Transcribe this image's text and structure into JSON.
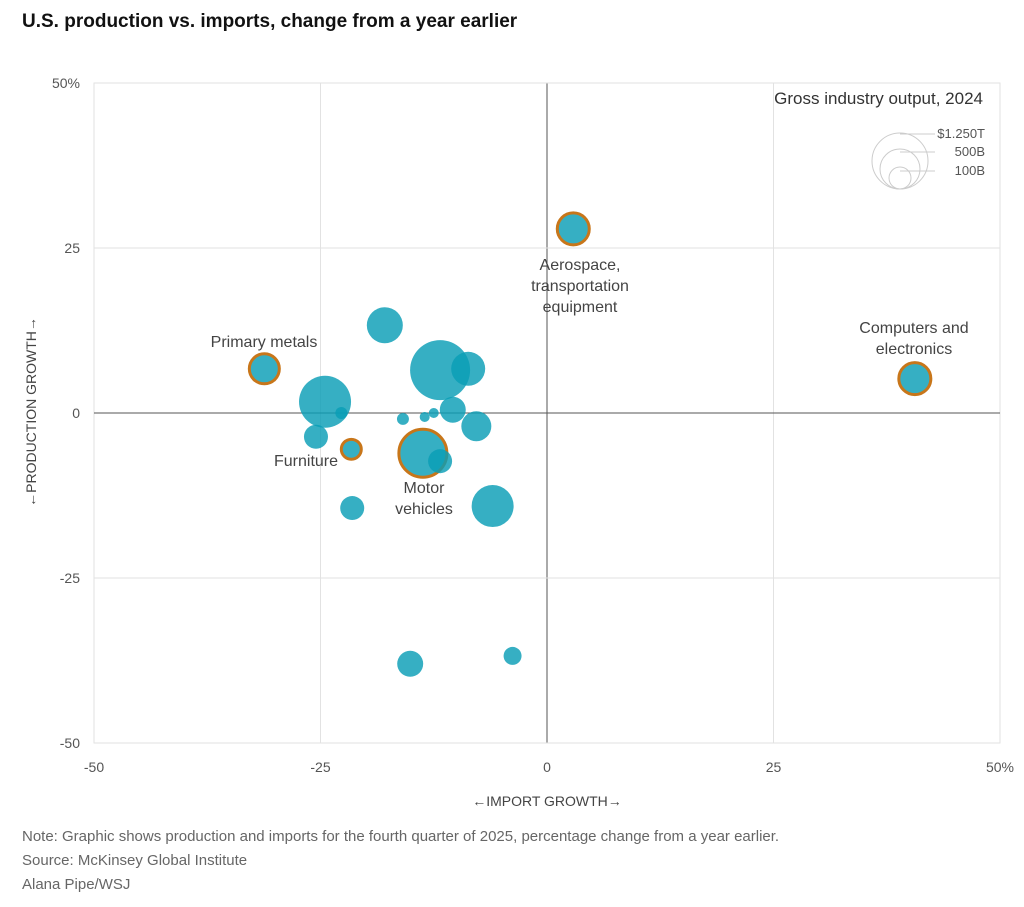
{
  "chart_data": {
    "type": "scatter",
    "title": "U.S. production vs. imports, change from a year earlier",
    "xlabel": "←IMPORT GROWTH→",
    "ylabel": "←PRODUCTION GROWTH→",
    "xlim": [
      -50,
      50
    ],
    "ylim": [
      -50,
      50
    ],
    "x_ticks": [
      "-50",
      "-25",
      "0",
      "25",
      "50%"
    ],
    "y_ticks": [
      "50%",
      "25",
      "0",
      "-25",
      "-50"
    ],
    "x_tick_values": [
      -50,
      -25,
      0,
      25,
      50
    ],
    "y_tick_values": [
      50,
      25,
      0,
      -25,
      -50
    ],
    "grid": true,
    "size_legend": {
      "title": "Gross industry output, 2024",
      "entries": [
        {
          "label": "$1.250T",
          "value": 1250
        },
        {
          "label": "500B",
          "value": 500
        },
        {
          "label": "100B",
          "value": 100
        }
      ],
      "placement": "top-right"
    },
    "colors": {
      "bubble": "#0a9db6",
      "highlight_outline": "#c8761a"
    },
    "points": [
      {
        "label": "Aerospace, transportation equipment",
        "x": 2.9,
        "y": 27.9,
        "size": 408,
        "highlight": true
      },
      {
        "label": "Computers and electronics",
        "x": 40.6,
        "y": 5.2,
        "size": 408,
        "highlight": true
      },
      {
        "label": "Primary metals",
        "x": -31.2,
        "y": 6.7,
        "size": 359,
        "highlight": true
      },
      {
        "x": -17.9,
        "y": 13.3,
        "size": 517
      },
      {
        "x": -11.8,
        "y": 6.5,
        "size": 1435
      },
      {
        "x": -8.7,
        "y": 6.7,
        "size": 461
      },
      {
        "x": -24.5,
        "y": 1.7,
        "size": 1078
      },
      {
        "x": -22.7,
        "y": 0,
        "size": 57
      },
      {
        "x": -25.5,
        "y": -3.6,
        "size": 230
      },
      {
        "label": "Furniture",
        "x": -21.6,
        "y": -5.5,
        "size": 159,
        "highlight": true
      },
      {
        "x": -15.9,
        "y": -0.9,
        "size": 57
      },
      {
        "x": -13.5,
        "y": -0.6,
        "size": 40
      },
      {
        "x": -12.5,
        "y": 0,
        "size": 40
      },
      {
        "x": -10.4,
        "y": 0.5,
        "size": 269
      },
      {
        "x": -7.8,
        "y": -2.0,
        "size": 359
      },
      {
        "label": "Motor vehicles",
        "x": -13.7,
        "y": -6.1,
        "size": 918,
        "highlight": true
      },
      {
        "x": -11.8,
        "y": -7.3,
        "size": 230
      },
      {
        "x": -21.5,
        "y": -14.4,
        "size": 230
      },
      {
        "x": -6.0,
        "y": -14.1,
        "size": 703
      },
      {
        "x": -15.1,
        "y": -38.0,
        "size": 269
      },
      {
        "x": -3.8,
        "y": -36.8,
        "size": 129
      }
    ],
    "annotations": [
      {
        "lines": [
          "Aerospace,",
          "transportation",
          "equipment"
        ]
      },
      {
        "lines": [
          "Computers and",
          "electronics"
        ]
      },
      {
        "lines": [
          "Primary metals"
        ]
      },
      {
        "lines": [
          "Furniture"
        ]
      },
      {
        "lines": [
          "Motor",
          "vehicles"
        ]
      }
    ]
  },
  "notes": {
    "note": "Note: Graphic shows production and imports for the fourth quarter of 2025, percentage change from a year earlier.",
    "source": "Source: McKinsey Global Institute",
    "credit": "Alana Pipe/WSJ"
  }
}
